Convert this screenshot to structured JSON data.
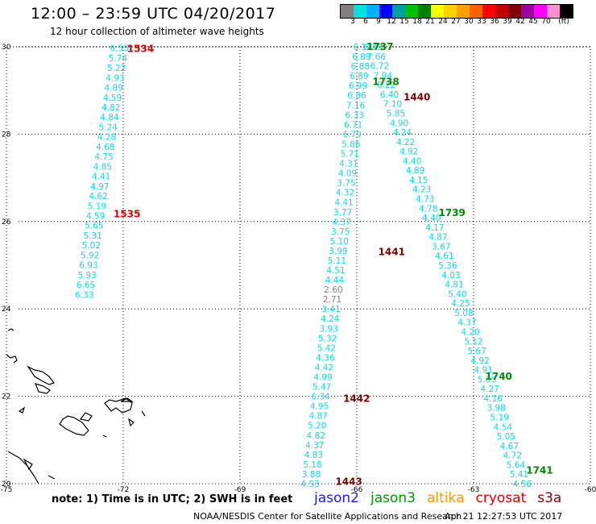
{
  "header": {
    "title": "12:00 – 23:59 UTC 04/20/2017",
    "subtitle": "12 hour collection of altimeter wave heights"
  },
  "colorbar": {
    "colors": [
      "#808080",
      "#00e0e0",
      "#00b0ff",
      "#0000ff",
      "#00a0a0",
      "#00c000",
      "#008000",
      "#ffff00",
      "#ffd000",
      "#ffa000",
      "#ff6000",
      "#ff0000",
      "#c00000",
      "#800000",
      "#a000a0",
      "#ff00ff",
      "#ff90d0",
      "#000000"
    ],
    "labels": [
      "3",
      "6",
      "9",
      "12",
      "15",
      "18",
      "21",
      "24",
      "27",
      "30",
      "33",
      "36",
      "39",
      "42",
      "45",
      "70",
      "(ft)"
    ]
  },
  "axes": {
    "lon_ticks": [
      -75,
      -72,
      -69,
      -66,
      -63,
      -60
    ],
    "lon_labels": [
      "-75",
      "-72",
      "-69",
      "-66",
      "-63",
      "-60"
    ],
    "lat_ticks": [
      30,
      28,
      26,
      24,
      22,
      20
    ],
    "lat_labels": [
      "30",
      "28",
      "26",
      "24",
      "22",
      "20"
    ]
  },
  "time_labels": [
    {
      "text": "1534",
      "lon": -71.9,
      "lat": 29.95,
      "sat": "cryosat"
    },
    {
      "text": "1535",
      "lon": -72.25,
      "lat": 26.17,
      "sat": "cryosat"
    },
    {
      "text": "1737",
      "lon": -65.75,
      "lat": 30.0,
      "sat": "jason3"
    },
    {
      "text": "1738",
      "lon": -65.6,
      "lat": 29.2,
      "sat": "jason3"
    },
    {
      "text": "1739",
      "lon": -63.9,
      "lat": 26.2,
      "sat": "jason3"
    },
    {
      "text": "1740",
      "lon": -62.7,
      "lat": 22.45,
      "sat": "jason3"
    },
    {
      "text": "1741",
      "lon": -61.65,
      "lat": 20.3,
      "sat": "jason3"
    },
    {
      "text": "1440",
      "lon": -64.8,
      "lat": 28.85,
      "sat": "s3a"
    },
    {
      "text": "1441",
      "lon": -65.45,
      "lat": 25.3,
      "sat": "s3a"
    },
    {
      "text": "1442",
      "lon": -66.35,
      "lat": 21.95,
      "sat": "s3a"
    },
    {
      "text": "1443",
      "lon": -66.55,
      "lat": 20.05,
      "sat": "s3a"
    }
  ],
  "tracks": [
    {
      "name": "cryosat-west",
      "start": {
        "lon": -72.1,
        "lat": 29.97
      },
      "end": {
        "lon": -73.0,
        "lat": 24.33
      },
      "values": [
        "6.53",
        "5.74",
        "5.22",
        "4.93",
        "4.89",
        "4.59",
        "4.82",
        "4.84",
        "5.24",
        "4.28",
        "4.68",
        "4.75",
        "4.85",
        "4.41",
        "4.97",
        "4.62",
        "5.19",
        "4.59",
        "5.65",
        "5.31",
        "5.02",
        "5.92",
        "6.93",
        "5.93",
        "6.65",
        "6.33"
      ],
      "colors": [
        "cyan",
        "cyan",
        "cyan",
        "cyan",
        "cyan",
        "cyan",
        "cyan",
        "cyan",
        "cyan",
        "cyan",
        "cyan",
        "cyan",
        "cyan",
        "cyan",
        "cyan",
        "cyan",
        "cyan",
        "cyan",
        "cyan",
        "cyan",
        "cyan",
        "cyan",
        "cyan",
        "cyan",
        "cyan",
        "cyan"
      ]
    },
    {
      "name": "jason3-descending",
      "start": {
        "lon": -65.58,
        "lat": 30.0
      },
      "end": {
        "lon": -61.75,
        "lat": 20.0
      },
      "values": [
        "6.79",
        "7.66",
        "6.72",
        "7.94",
        "6.22",
        "6.40",
        "7.10",
        "5.85",
        "4.90",
        "4.24",
        "4.22",
        "4.92",
        "4.40",
        "4.89",
        "4.15",
        "4.23",
        "4.73",
        "4.78",
        "4.40",
        "4.17",
        "4.87",
        "3.67",
        "4.61",
        "5.36",
        "4.03",
        "4.81",
        "5.40",
        "4.25",
        "5.08",
        "4.37",
        "4.20",
        "5.12",
        "5.67",
        "4.92",
        "4.91",
        "5.05",
        "4.27",
        "4.16",
        "3.98",
        "5.19",
        "4.54",
        "5.05",
        "4.67",
        "4.72",
        "5.64",
        "5.41",
        "4.56"
      ],
      "colors": [
        "cyan",
        "cyan",
        "cyan",
        "cyan",
        "cyan",
        "cyan",
        "cyan",
        "cyan",
        "cyan",
        "cyan",
        "cyan",
        "cyan",
        "cyan",
        "cyan",
        "cyan",
        "cyan",
        "cyan",
        "cyan",
        "cyan",
        "cyan",
        "cyan",
        "cyan",
        "cyan",
        "cyan",
        "cyan",
        "cyan",
        "cyan",
        "cyan",
        "cyan",
        "cyan",
        "cyan",
        "cyan",
        "cyan",
        "cyan",
        "cyan",
        "cyan",
        "cyan",
        "cyan",
        "cyan",
        "cyan",
        "cyan",
        "cyan",
        "cyan",
        "cyan",
        "cyan",
        "cyan",
        "cyan"
      ]
    },
    {
      "name": "s3a-ascending",
      "start": {
        "lon": -65.85,
        "lat": 30.0
      },
      "end": {
        "lon": -67.2,
        "lat": 20.0
      },
      "values": [
        "6.11",
        "6.89",
        "6.88",
        "6.89",
        "6.99",
        "6.86",
        "7.16",
        "6.33",
        "6.71",
        "6.79",
        "5.86",
        "5.71",
        "4.31",
        "4.09",
        "3.75",
        "4.32",
        "4.41",
        "3.77",
        "4.37",
        "3.75",
        "5.10",
        "3.99",
        "5.11",
        "4.51",
        "4.44",
        "2.60",
        "2.71",
        "3.41",
        "4.24",
        "3.93",
        "5.32",
        "5.42",
        "4.36",
        "4.42",
        "4.99",
        "5.47",
        "6.34",
        "4.95",
        "4.87",
        "5.20",
        "4.82",
        "4.37",
        "4.83",
        "5.18",
        "3.88",
        "4.53"
      ],
      "colors": [
        "cyan",
        "cyan",
        "cyan",
        "cyan",
        "cyan",
        "cyan",
        "cyan",
        "cyan",
        "cyan",
        "cyan",
        "cyan",
        "cyan",
        "cyan",
        "cyan",
        "cyan",
        "cyan",
        "cyan",
        "cyan",
        "cyan",
        "cyan",
        "cyan",
        "cyan",
        "cyan",
        "cyan",
        "cyan",
        "gray",
        "gray",
        "cyan",
        "cyan",
        "cyan",
        "cyan",
        "cyan",
        "cyan",
        "cyan",
        "cyan",
        "cyan",
        "cyan",
        "cyan",
        "cyan",
        "cyan",
        "cyan",
        "cyan",
        "cyan",
        "cyan",
        "cyan",
        "cyan"
      ]
    }
  ],
  "note": "note:  1) Time is in UTC;  2) SWH is in feet",
  "legend": [
    {
      "label": "jason2",
      "color": "#1a1aff"
    },
    {
      "label": "jason3",
      "color": "#009900"
    },
    {
      "label": "altika",
      "color": "#ff9900"
    },
    {
      "label": "cryosat",
      "color": "#e00000"
    },
    {
      "label": "s3a",
      "color": "#8b0000"
    }
  ],
  "footer": {
    "credit": "NOAA/NESDIS Center for Satellite Applications and Research",
    "timestamp": "Apr 21 12:27:53 UTC 2017"
  },
  "colors": {
    "value_cyan": "#10d8e8",
    "value_gray": "#808080",
    "cryosat": "#e00000",
    "jason3": "#008800",
    "s3a": "#800000",
    "grid": "#000000"
  }
}
